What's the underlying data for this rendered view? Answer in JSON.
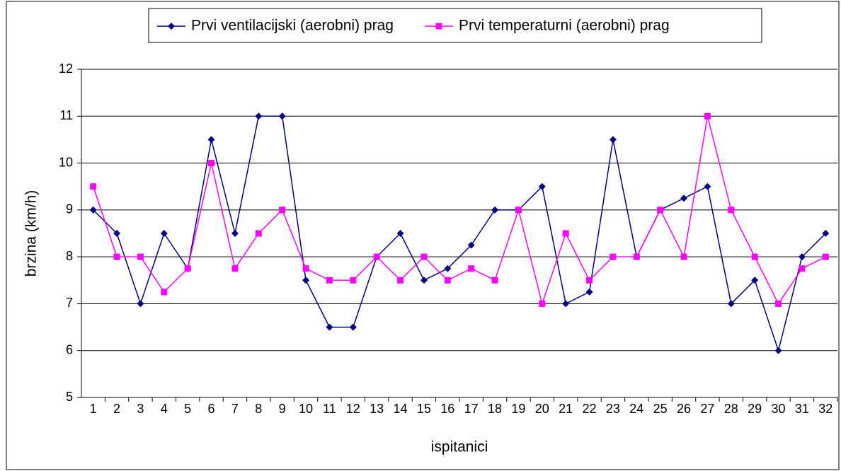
{
  "chart_data": {
    "type": "line",
    "xlabel": "ispitanici",
    "ylabel": "brzina (km/h)",
    "categories": [
      1,
      2,
      3,
      4,
      5,
      6,
      7,
      8,
      9,
      10,
      11,
      12,
      13,
      14,
      15,
      16,
      17,
      18,
      19,
      20,
      21,
      22,
      23,
      24,
      25,
      26,
      27,
      28,
      29,
      30,
      31,
      32
    ],
    "series": [
      {
        "name": "Prvi ventilacijski (aerobni) prag",
        "color": "#000080",
        "marker": "diamond",
        "values": [
          9,
          8.5,
          7,
          8.5,
          7.75,
          10.5,
          8.5,
          11,
          11,
          7.5,
          6.5,
          6.5,
          8,
          8.5,
          7.5,
          7.75,
          8.25,
          9,
          9,
          9.5,
          7,
          7.25,
          10.5,
          8,
          9,
          9.25,
          9.5,
          7,
          7.5,
          6,
          8,
          8.5
        ]
      },
      {
        "name": "Prvi temperaturni (aerobni) prag",
        "color": "#ff00ff",
        "marker": "square",
        "values": [
          9.5,
          8,
          8,
          7.25,
          7.75,
          10,
          7.75,
          8.5,
          9,
          7.75,
          7.5,
          7.5,
          8,
          7.5,
          8,
          7.5,
          7.75,
          7.5,
          9,
          7,
          8.5,
          7.5,
          8,
          8,
          9,
          8,
          11,
          9,
          8,
          7,
          7.75,
          8
        ]
      }
    ],
    "ylim": [
      5,
      12
    ],
    "yticks": [
      5,
      6,
      7,
      8,
      9,
      10,
      11,
      12
    ],
    "grid": true,
    "legend": "top"
  }
}
